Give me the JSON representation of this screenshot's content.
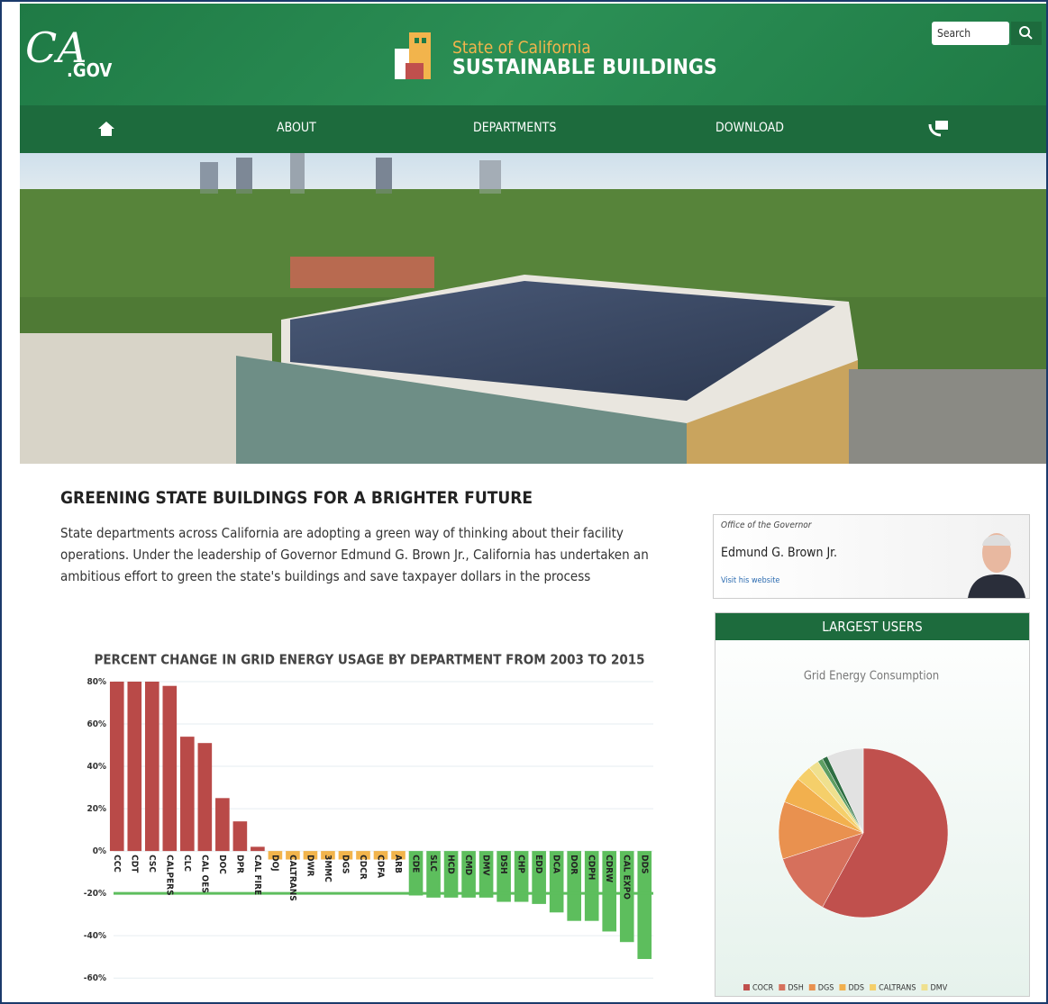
{
  "header": {
    "logo_main": "CA",
    "logo_sub": ".GOV",
    "site_line1": "State of California",
    "site_line2": "SUSTAINABLE BUILDINGS",
    "search_placeholder": "Search"
  },
  "nav": {
    "items": [
      "ABOUT",
      "DEPARTMENTS",
      "DOWNLOAD"
    ]
  },
  "article": {
    "heading": "GREENING STATE BUILDINGS FOR A BRIGHTER FUTURE",
    "body": "State departments across California are adopting a green way of thinking about their facility operations. Under the leadership of Governor Edmund G. Brown Jr., California has undertaken an ambitious effort to green the state's buildings and save taxpayer dollars in the process"
  },
  "governor": {
    "office": "Office of the Governor",
    "name": "Edmund G. Brown Jr.",
    "link": "Visit his website"
  },
  "sidebar": {
    "heading": "LARGEST USERS"
  },
  "chart_data": [
    {
      "type": "bar",
      "title": "PERCENT CHANGE IN GRID ENERGY USAGE BY DEPARTMENT FROM 2003 TO 2015",
      "categories": [
        "CCC",
        "CDT",
        "CSC",
        "CALPERS",
        "CLC",
        "CAL OES",
        "DOC",
        "DPR",
        "CAL FIRE",
        "DOJ",
        "CALTRANS",
        "DWR",
        "3MMC",
        "DGS",
        "CDCR",
        "CDFA",
        "ARB",
        "CDE",
        "SLC",
        "HCD",
        "CMD",
        "DMV",
        "DSH",
        "CHP",
        "EDD",
        "DCA",
        "DOR",
        "CDPH",
        "CDRW",
        "CAL EXPO",
        "DDS"
      ],
      "values": [
        80,
        80,
        80,
        78,
        54,
        51,
        25,
        14,
        2,
        -4,
        -4,
        -4,
        -4,
        -4,
        -4,
        -4,
        -4,
        -21,
        -22,
        -22,
        -22,
        -22,
        -24,
        -24,
        -25,
        -29,
        -33,
        -33,
        -38,
        -43,
        -51
      ],
      "colors": [
        "#b94a48",
        "#b94a48",
        "#b94a48",
        "#b94a48",
        "#b94a48",
        "#b94a48",
        "#b94a48",
        "#b94a48",
        "#b94a48",
        "#f2b44c",
        "#f2b44c",
        "#f2b44c",
        "#f2b44c",
        "#f2b44c",
        "#f2b44c",
        "#f2b44c",
        "#f2b44c",
        "#5dbe5d",
        "#5dbe5d",
        "#5dbe5d",
        "#5dbe5d",
        "#5dbe5d",
        "#5dbe5d",
        "#5dbe5d",
        "#5dbe5d",
        "#5dbe5d",
        "#5dbe5d",
        "#5dbe5d",
        "#5dbe5d",
        "#5dbe5d",
        "#5dbe5d"
      ],
      "ylim": [
        -68,
        80
      ],
      "yticks": [
        {
          "value": 80,
          "label": "80%"
        },
        {
          "value": 60,
          "label": "60%"
        },
        {
          "value": 40,
          "label": "40%"
        },
        {
          "value": 20,
          "label": "20%"
        },
        {
          "value": 0,
          "label": "0%"
        },
        {
          "value": -20,
          "label": "-20%"
        },
        {
          "value": -40,
          "label": "-40%"
        },
        {
          "value": -60,
          "label": "-60%"
        }
      ],
      "grid": true,
      "reference_value": -20,
      "reference_color": "#5dbe5d"
    },
    {
      "type": "pie",
      "title": "Grid Energy Consumption",
      "categories": [
        "COCR",
        "DSH",
        "DGS",
        "DDS",
        "CALTRANS",
        "DMV",
        null,
        null,
        null
      ],
      "values": [
        58,
        12,
        11,
        5,
        3,
        2,
        1,
        1,
        7
      ],
      "colors": [
        "#c0504d",
        "#d6705c",
        "#e9914f",
        "#f2b04e",
        "#f5cf6a",
        "#efe08e",
        "#5e9e62",
        "#2e6e42",
        "#e2e2e2"
      ],
      "legend": "bottom"
    }
  ]
}
